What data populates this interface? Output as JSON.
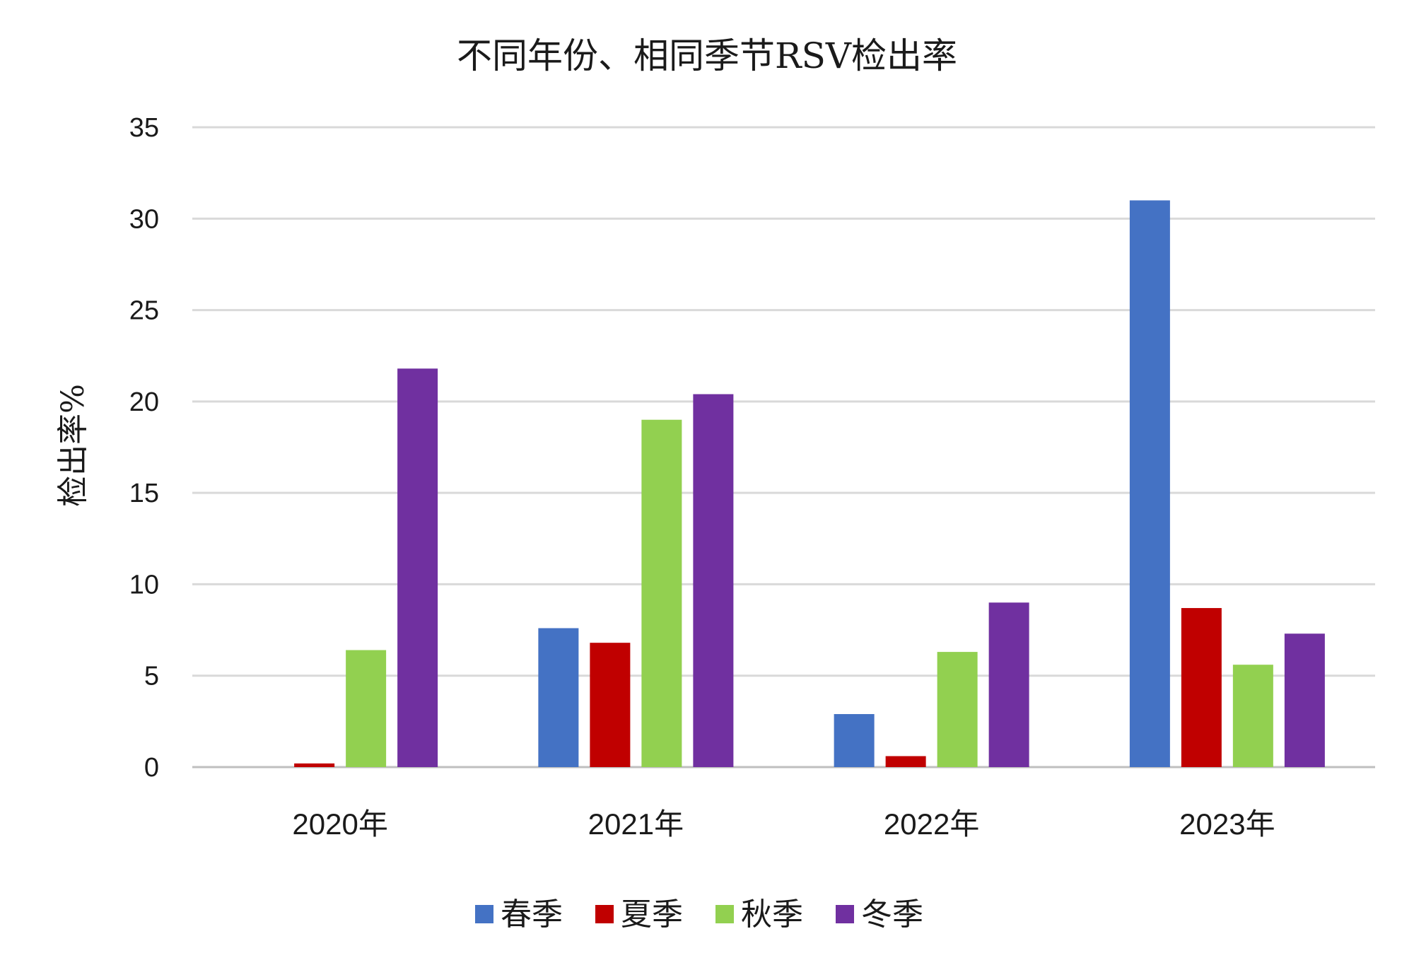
{
  "chart_data": {
    "type": "bar",
    "title": "不同年份、相同季节RSV检出率",
    "xlabel": "",
    "ylabel": "检出率%",
    "ylim": [
      0,
      35
    ],
    "yticks": [
      0,
      5,
      10,
      15,
      20,
      25,
      30,
      35
    ],
    "grid": true,
    "legend_position": "bottom",
    "categories": [
      "2020年",
      "2021年",
      "2022年",
      "2023年"
    ],
    "series": [
      {
        "name": "春季",
        "color": "#4472c4",
        "values": [
          0,
          7.6,
          2.9,
          31.0
        ]
      },
      {
        "name": "夏季",
        "color": "#c00000",
        "values": [
          0.2,
          6.8,
          0.6,
          8.7
        ]
      },
      {
        "name": "秋季",
        "color": "#92d050",
        "values": [
          6.4,
          19.0,
          6.3,
          5.6
        ]
      },
      {
        "name": "冬季",
        "color": "#7030a0",
        "values": [
          21.8,
          20.4,
          9.0,
          7.3
        ]
      }
    ]
  }
}
